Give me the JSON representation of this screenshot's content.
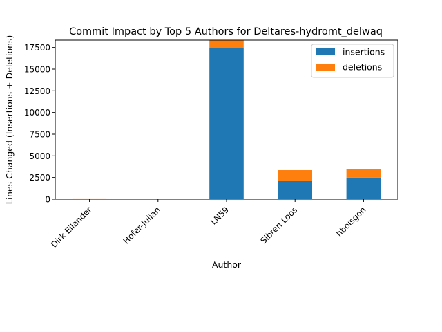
{
  "chart_data": {
    "type": "bar",
    "stacked": true,
    "title": "Commit Impact by Top 5 Authors for Deltares-hydromt_delwaq",
    "xlabel": "Author",
    "ylabel": "Lines Changed (Insertions + Deletions)",
    "categories": [
      "Dirk Eilander",
      "Hofer-Julian",
      "LN59",
      "Sibren Loos",
      "hboisgon"
    ],
    "series": [
      {
        "name": "insertions",
        "color": "#1f77b4",
        "values": [
          40,
          5,
          17400,
          2080,
          2480
        ]
      },
      {
        "name": "deletions",
        "color": "#ff7f0e",
        "values": [
          45,
          5,
          950,
          1270,
          950
        ]
      }
    ],
    "ylim": [
      0,
      18350
    ],
    "yticks": [
      0,
      2500,
      5000,
      7500,
      10000,
      12500,
      15000,
      17500
    ],
    "ytick_labels": [
      "0",
      "2500",
      "5000",
      "7500",
      "10000",
      "12500",
      "15000",
      "17500"
    ],
    "grid": false,
    "legend_position": "top-right"
  }
}
